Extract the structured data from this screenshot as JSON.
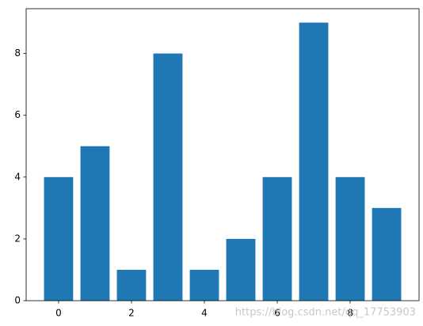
{
  "chart_data": {
    "type": "bar",
    "x": [
      0,
      1,
      2,
      3,
      4,
      5,
      6,
      7,
      8,
      9
    ],
    "values": [
      4,
      5,
      1,
      8,
      1,
      2,
      4,
      9,
      4,
      3
    ],
    "color": "#1f77b4",
    "xlim": [
      -0.89,
      9.89
    ],
    "xticks": [
      0,
      2,
      4,
      6,
      8
    ],
    "ylim": [
      0,
      9.45
    ],
    "yticks": [
      0,
      2,
      4,
      6,
      8
    ],
    "grid": false,
    "watermark": "https://blog.csdn.net/qq_17753903"
  }
}
